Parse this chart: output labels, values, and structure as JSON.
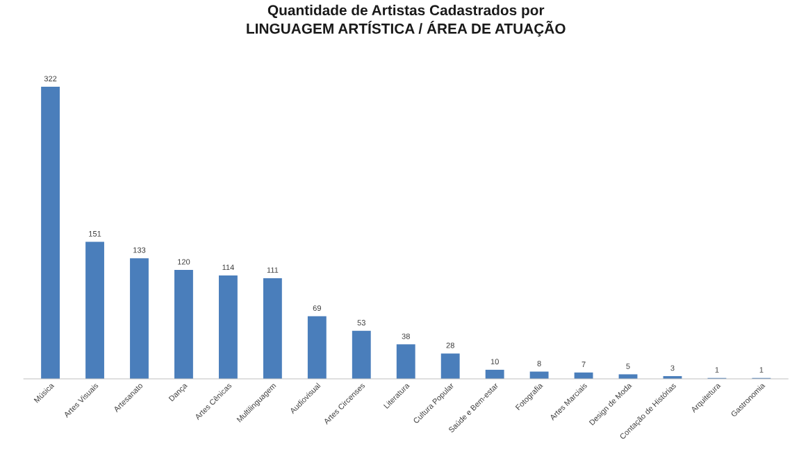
{
  "chart_data": {
    "type": "bar",
    "title": "Quantidade de Artistas Cadastrados por\nLINGUAGEM ARTÍSTICA / ÁREA DE ATUAÇÃO",
    "categories": [
      "Música",
      "Artes Visuais",
      "Artesanato",
      "Dança",
      "Artes Cênicas",
      "Multilinguagem",
      "Audiovisual",
      "Artes Circenses",
      "Literatura",
      "Cultura Popular",
      "Saúde e Bem-estar",
      "Fotografia",
      "Artes Marciais",
      "Design de Moda",
      "Contação de Histórias",
      "Arquitetura",
      "Gastronomia"
    ],
    "values": [
      322,
      151,
      133,
      120,
      114,
      111,
      69,
      53,
      38,
      28,
      10,
      8,
      7,
      5,
      3,
      1,
      1
    ],
    "color": "#4a7ebb",
    "data_labels": true,
    "grid": false,
    "legend": false,
    "tick_labels": "x"
  }
}
